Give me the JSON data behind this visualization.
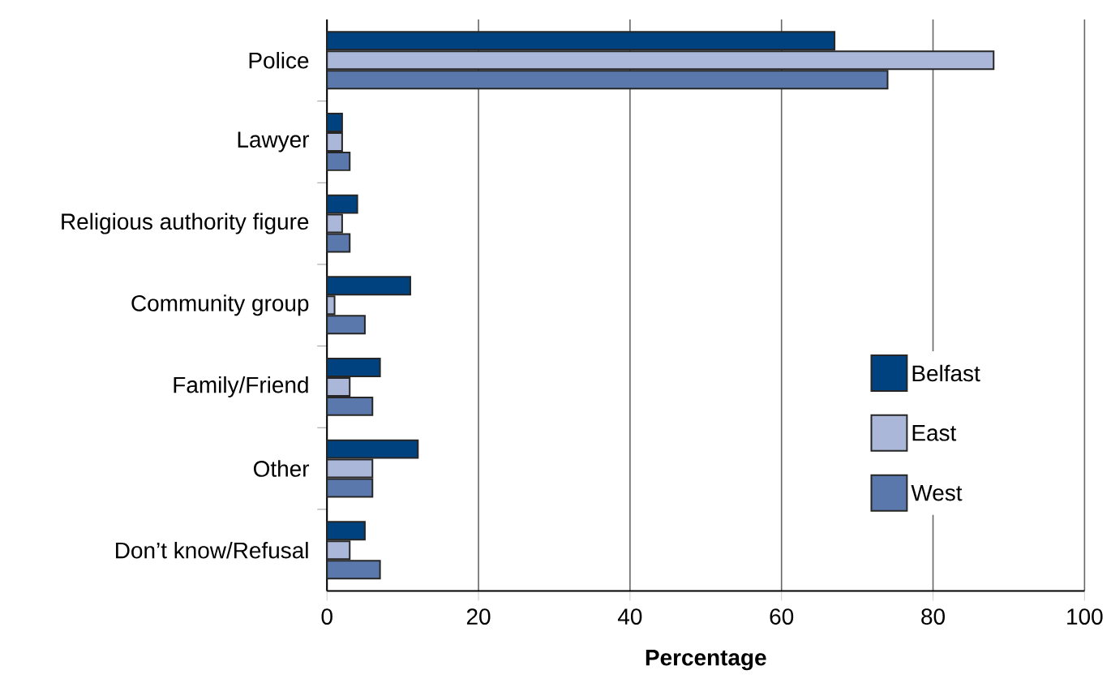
{
  "chart_data": {
    "type": "bar",
    "orientation": "horizontal",
    "xlabel": "Percentage",
    "categories": [
      "Police",
      "Lawyer",
      "Religious authority figure",
      "Community group",
      "Family/Friend",
      "Other",
      "Don’t know/Refusal"
    ],
    "series": [
      {
        "name": "Belfast",
        "color": "#00427f",
        "values": [
          67,
          2,
          4,
          11,
          7,
          12,
          5
        ]
      },
      {
        "name": "East",
        "color": "#aab7d9",
        "values": [
          88,
          2,
          2,
          1,
          3,
          6,
          3
        ]
      },
      {
        "name": "West",
        "color": "#5b78ac",
        "values": [
          74,
          3,
          3,
          5,
          6,
          6,
          7
        ]
      }
    ],
    "xlim": [
      0,
      100
    ],
    "xticks": [
      0,
      20,
      40,
      60,
      80,
      100
    ],
    "grid": "x",
    "legend": "right"
  }
}
